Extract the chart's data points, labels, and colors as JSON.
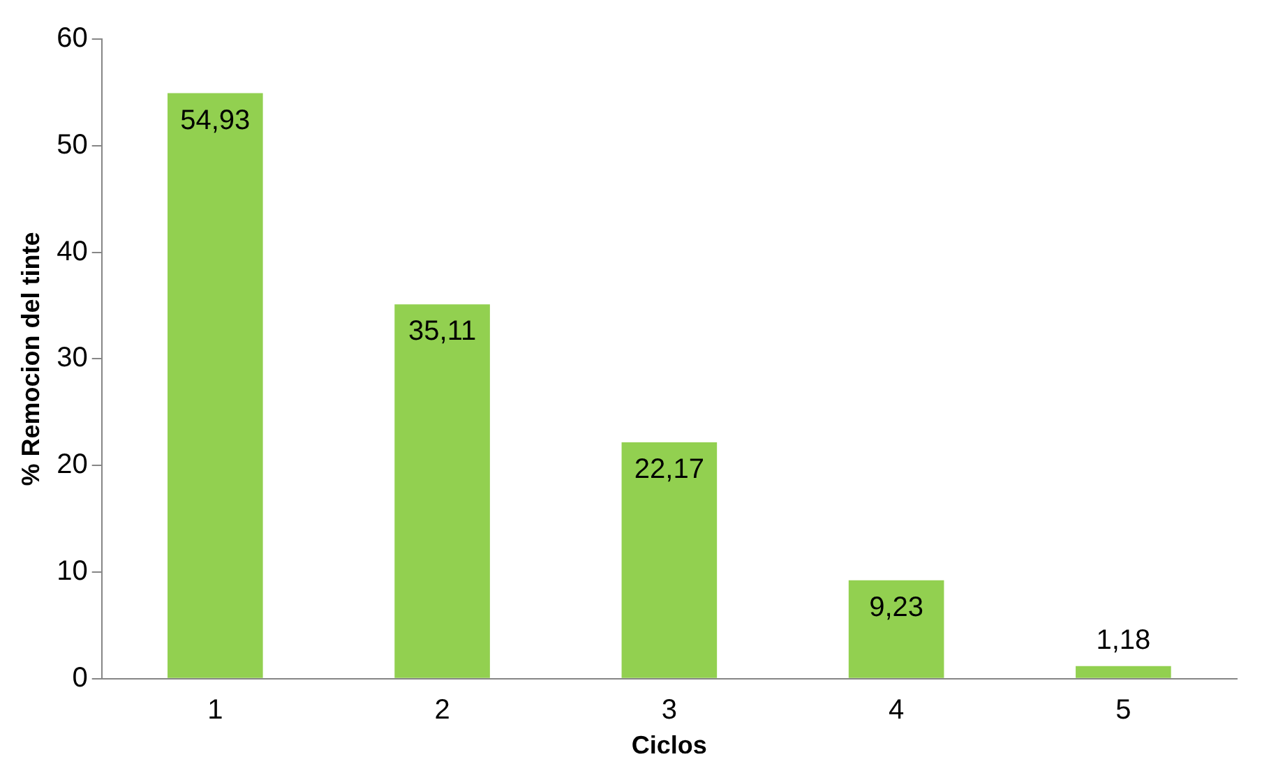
{
  "chart_data": {
    "type": "bar",
    "xlabel": "Ciclos",
    "ylabel": "% Remocion del tinte",
    "categories": [
      "1",
      "2",
      "3",
      "4",
      "5"
    ],
    "values": [
      54.93,
      35.11,
      22.17,
      9.23,
      1.18
    ],
    "value_labels": [
      "54,93",
      "35,11",
      "22,17",
      "9,23",
      "1,18"
    ],
    "color": "#92d050",
    "ylim": [
      0,
      60
    ],
    "yticks": [
      0,
      10,
      20,
      30,
      40,
      50,
      60
    ]
  }
}
